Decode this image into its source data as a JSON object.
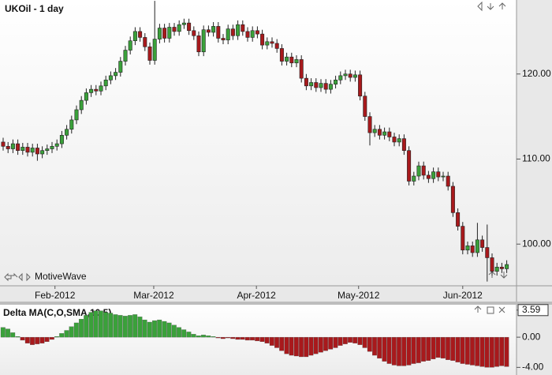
{
  "chart_data": [
    {
      "type": "candlestick",
      "title": "UKOil - 1 day",
      "watermark": "MotiveWave",
      "up_color": "#3aa13a",
      "down_color": "#a8191c",
      "open": [
        112.0,
        111.5,
        111.2,
        111.8,
        111.0,
        111.4,
        110.8,
        111.3,
        110.6,
        111.0,
        111.2,
        111.5,
        111.8,
        112.8,
        113.5,
        114.6,
        115.8,
        116.9,
        117.8,
        118.2,
        118.0,
        118.6,
        119.3,
        119.8,
        120.2,
        121.5,
        122.8,
        123.9,
        125.0,
        124.3,
        123.2,
        121.6,
        124.1,
        125.4,
        124.2,
        125.5,
        125.0,
        125.8,
        126.0,
        125.1,
        124.5,
        122.6,
        125.2,
        124.9,
        125.6,
        124.2,
        124.0,
        125.3,
        124.5,
        125.8,
        125.0,
        124.3,
        125.1,
        124.7,
        123.4,
        123.8,
        123.6,
        123.0,
        121.5,
        122.0,
        121.3,
        121.7,
        119.5,
        118.6,
        119.0,
        118.4,
        118.9,
        118.2,
        118.8,
        119.3,
        119.8,
        120.0,
        119.6,
        119.9,
        117.4,
        115.0,
        113.1,
        113.5,
        112.8,
        113.2,
        112.6,
        112.0,
        112.4,
        111.0,
        107.4,
        108.0,
        109.2,
        108.1,
        107.7,
        108.5,
        107.9,
        108.0,
        106.8,
        103.7,
        102.1,
        99.3,
        99.8,
        99.0,
        100.5,
        99.6,
        98.4,
        96.8,
        97.3,
        97.1
      ],
      "high": [
        112.5,
        112.0,
        112.3,
        112.3,
        111.9,
        111.9,
        111.8,
        111.8,
        111.5,
        111.7,
        112.0,
        112.3,
        113.3,
        114.0,
        115.1,
        116.3,
        117.4,
        118.3,
        118.7,
        118.7,
        119.1,
        119.8,
        120.3,
        120.7,
        122.0,
        123.3,
        124.4,
        125.5,
        125.5,
        124.8,
        123.7,
        128.6,
        125.9,
        125.9,
        126.0,
        126.0,
        126.3,
        126.5,
        126.5,
        125.6,
        125.0,
        125.7,
        125.7,
        126.1,
        126.1,
        124.7,
        125.8,
        125.8,
        126.3,
        126.3,
        125.5,
        125.6,
        125.6,
        125.2,
        124.3,
        124.3,
        124.1,
        123.5,
        122.5,
        122.5,
        122.2,
        122.2,
        120.0,
        119.5,
        119.5,
        119.4,
        119.4,
        119.3,
        119.8,
        120.3,
        120.5,
        120.5,
        120.4,
        120.4,
        117.9,
        115.5,
        114.0,
        114.0,
        113.7,
        113.7,
        113.1,
        112.9,
        112.9,
        111.5,
        108.5,
        109.7,
        109.7,
        108.6,
        109.0,
        109.0,
        108.5,
        108.5,
        107.3,
        104.2,
        102.6,
        100.3,
        100.3,
        102.5,
        101.0,
        102.3,
        98.9,
        97.8,
        97.8,
        98.1
      ],
      "low": [
        111.0,
        110.7,
        110.7,
        110.5,
        110.5,
        110.3,
        110.3,
        109.8,
        110.1,
        110.5,
        110.7,
        111.0,
        111.3,
        112.3,
        113.0,
        114.1,
        115.3,
        116.4,
        117.3,
        117.5,
        117.5,
        118.1,
        118.8,
        119.3,
        119.7,
        121.0,
        122.3,
        123.4,
        123.8,
        122.7,
        121.1,
        121.1,
        123.6,
        123.7,
        123.7,
        124.5,
        124.5,
        125.3,
        124.6,
        124.0,
        122.1,
        122.1,
        124.4,
        124.4,
        123.7,
        123.5,
        123.5,
        124.0,
        124.0,
        124.5,
        123.8,
        123.8,
        124.2,
        122.9,
        122.9,
        123.1,
        122.5,
        121.0,
        121.0,
        120.8,
        120.8,
        119.0,
        118.1,
        118.1,
        117.9,
        117.9,
        117.7,
        117.7,
        118.3,
        118.8,
        119.3,
        119.1,
        119.1,
        116.9,
        114.5,
        111.6,
        112.6,
        112.3,
        112.3,
        112.1,
        111.5,
        111.5,
        110.5,
        106.9,
        106.9,
        107.5,
        107.6,
        107.2,
        107.2,
        107.4,
        107.4,
        106.3,
        103.2,
        101.6,
        98.8,
        98.8,
        98.5,
        98.5,
        99.1,
        95.6,
        96.3,
        96.3,
        96.6,
        96.6
      ],
      "close": [
        111.5,
        111.2,
        111.8,
        111.0,
        111.4,
        110.8,
        111.3,
        110.6,
        111.0,
        111.2,
        111.5,
        111.8,
        112.8,
        113.5,
        114.6,
        115.8,
        116.9,
        117.8,
        118.2,
        118.0,
        118.6,
        119.3,
        119.8,
        120.2,
        121.5,
        122.8,
        123.9,
        125.0,
        124.3,
        123.2,
        121.6,
        124.1,
        125.4,
        124.2,
        125.5,
        125.0,
        125.8,
        126.0,
        125.1,
        124.5,
        122.6,
        125.2,
        124.9,
        125.6,
        124.2,
        124.0,
        125.3,
        124.5,
        125.8,
        125.0,
        124.3,
        125.1,
        124.7,
        123.4,
        123.8,
        123.6,
        123.0,
        121.5,
        122.0,
        121.3,
        121.7,
        119.5,
        118.6,
        119.0,
        118.4,
        118.9,
        118.2,
        118.8,
        119.3,
        119.8,
        120.0,
        119.6,
        119.9,
        117.4,
        115.0,
        113.1,
        113.5,
        112.8,
        113.2,
        112.6,
        112.0,
        112.4,
        111.0,
        107.4,
        108.0,
        109.2,
        108.1,
        107.7,
        108.5,
        107.9,
        108.0,
        106.8,
        103.7,
        102.1,
        99.3,
        99.8,
        99.0,
        100.5,
        99.6,
        98.4,
        96.8,
        97.3,
        97.1,
        97.6
      ],
      "ylim": [
        95.1,
        128.7
      ],
      "yticks": [
        {
          "value": 100,
          "label": "100.00"
        },
        {
          "value": 110,
          "label": "110.00"
        },
        {
          "value": 120,
          "label": "120.00"
        }
      ],
      "xticks": [
        {
          "value": 10.6,
          "label": "Feb-2012"
        },
        {
          "value": 30.8,
          "label": "Mar-2012"
        },
        {
          "value": 51.8,
          "label": "Apr-2012"
        },
        {
          "value": 72.7,
          "label": "May-2012"
        },
        {
          "value": 94,
          "label": "Jun-2012"
        }
      ]
    },
    {
      "type": "bar",
      "title": "Delta MA(C,O,SMA,10,5)",
      "up_color": "#3aa13a",
      "down_color": "#a8191c",
      "values": [
        1.3,
        1.1,
        0.6,
        0.1,
        -0.4,
        -0.8,
        -1.0,
        -0.9,
        -0.8,
        -0.6,
        -0.3,
        0.1,
        0.5,
        0.9,
        1.4,
        1.9,
        2.4,
        2.9,
        3.3,
        3.5,
        3.5,
        3.3,
        3.2,
        3.0,
        2.9,
        2.8,
        2.9,
        3.0,
        2.7,
        2.3,
        2.0,
        2.2,
        2.3,
        2.1,
        1.9,
        1.6,
        1.3,
        1.0,
        0.7,
        0.4,
        0.2,
        0.3,
        0.2,
        0.1,
        -0.1,
        -0.2,
        -0.1,
        -0.2,
        -0.3,
        -0.3,
        -0.4,
        -0.4,
        -0.5,
        -0.6,
        -0.8,
        -1.1,
        -1.4,
        -1.8,
        -2.2,
        -2.4,
        -2.5,
        -2.6,
        -2.6,
        -2.4,
        -2.2,
        -2.0,
        -1.8,
        -1.6,
        -1.4,
        -1.1,
        -0.9,
        -0.7,
        -0.8,
        -1.0,
        -1.4,
        -1.9,
        -2.4,
        -2.8,
        -3.2,
        -3.5,
        -3.7,
        -3.8,
        -3.8,
        -3.7,
        -3.5,
        -3.4,
        -3.2,
        -3.1,
        -2.9,
        -2.7,
        -2.8,
        -3.0,
        -3.1,
        -3.3,
        -3.5,
        -3.6,
        -3.7,
        -3.8,
        -3.9,
        -4.0,
        -4.0,
        -3.9,
        -3.8,
        -3.9
      ],
      "ylim": [
        -4.8,
        4.3
      ],
      "yticks": [
        {
          "value": 3.59,
          "label": "3.59"
        },
        {
          "value": 0,
          "label": "0.00"
        },
        {
          "value": -4,
          "label": "-4.00"
        }
      ]
    }
  ]
}
